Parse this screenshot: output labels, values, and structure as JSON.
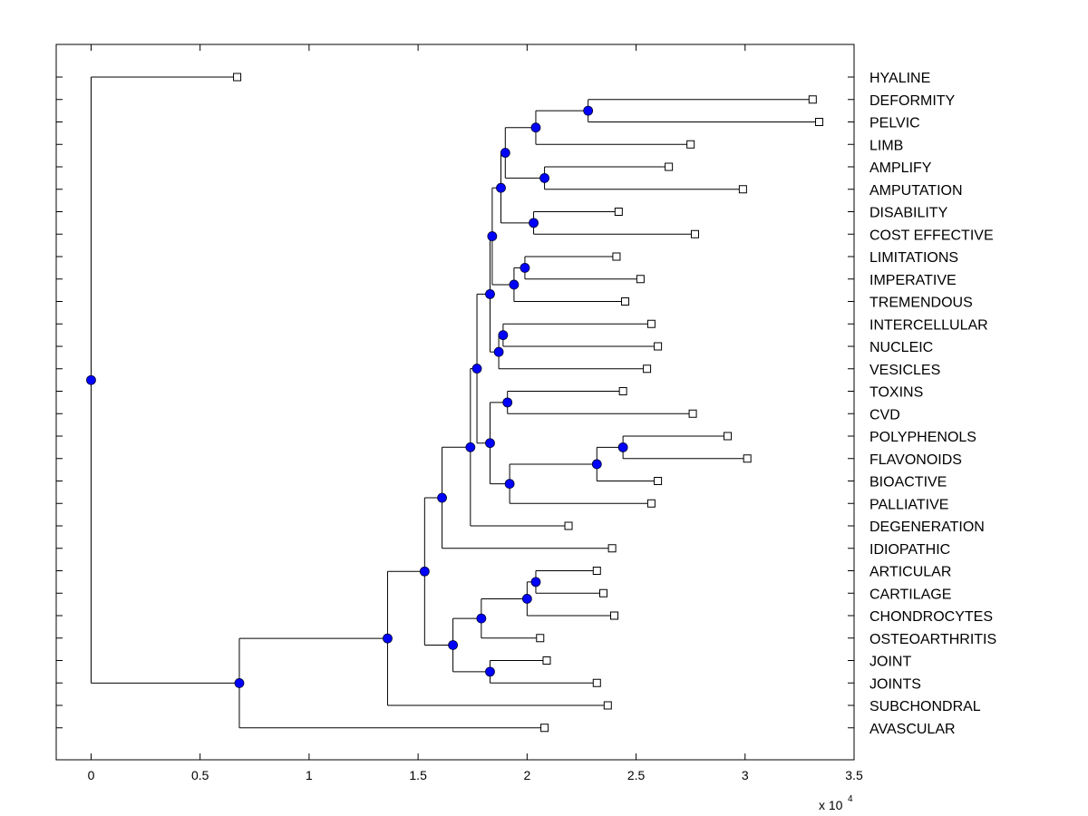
{
  "chart_data": {
    "type": "dendrogram",
    "title": "",
    "xlabel": "",
    "ylabel": "",
    "x_scale_label": "x 10",
    "x_scale_exponent": "4",
    "xlim": [
      -0.16,
      3.5
    ],
    "xticks": [
      0,
      0.5,
      1,
      1.5,
      2,
      2.5,
      3,
      3.5
    ],
    "xtick_labels": [
      "0",
      "0.5",
      "1",
      "1.5",
      "2",
      "2.5",
      "3",
      "3.5"
    ],
    "leaf_labels": [
      "HYALINE",
      "DEFORMITY",
      "PELVIC",
      "LIMB",
      "AMPLIFY",
      "AMPUTATION",
      "DISABILITY",
      "COST EFFECTIVE",
      "LIMITATIONS",
      "IMPERATIVE",
      "TREMENDOUS",
      "INTERCELLULAR",
      "NUCLEIC",
      "VESICLES",
      "TOXINS",
      "CVD",
      "POLYPHENOLS",
      "FLAVONOIDS",
      "BIOACTIVE",
      "PALLIATIVE",
      "DEGENERATION",
      "IDIOPATHIC",
      "ARTICULAR",
      "CARTILAGE",
      "CHONDROCYTES",
      "OSTEOARTHRITIS",
      "JOINT",
      "JOINTS",
      "SUBCHONDRAL",
      "AVASCULAR"
    ],
    "leaf_values": [
      0.67,
      3.31,
      3.34,
      2.75,
      2.65,
      2.99,
      2.42,
      2.77,
      2.41,
      2.52,
      2.45,
      2.57,
      2.6,
      2.55,
      2.44,
      2.76,
      2.92,
      3.01,
      2.6,
      2.57,
      2.19,
      2.39,
      2.32,
      2.35,
      2.4,
      2.06,
      2.09,
      2.32,
      2.37,
      2.08
    ],
    "nodes": [
      {
        "id": "n1",
        "x": 2.28,
        "children": [
          "L1",
          "L2"
        ]
      },
      {
        "id": "n2",
        "x": 2.04,
        "children": [
          "n1",
          "L3"
        ]
      },
      {
        "id": "n3",
        "x": 2.08,
        "children": [
          "L4",
          "L5"
        ]
      },
      {
        "id": "n4",
        "x": 1.9,
        "children": [
          "n2",
          "n3"
        ]
      },
      {
        "id": "n5",
        "x": 2.03,
        "children": [
          "L6",
          "L7"
        ]
      },
      {
        "id": "n6",
        "x": 1.88,
        "children": [
          "n4",
          "n5"
        ]
      },
      {
        "id": "n7",
        "x": 1.99,
        "children": [
          "L8",
          "L9"
        ]
      },
      {
        "id": "n8",
        "x": 1.94,
        "children": [
          "n7",
          "L10"
        ]
      },
      {
        "id": "n9",
        "x": 1.84,
        "children": [
          "n6",
          "n8"
        ]
      },
      {
        "id": "n10",
        "x": 1.89,
        "children": [
          "L11",
          "L12"
        ]
      },
      {
        "id": "n11",
        "x": 1.87,
        "children": [
          "n10",
          "L13"
        ]
      },
      {
        "id": "n12",
        "x": 1.83,
        "children": [
          "n9",
          "n11"
        ]
      },
      {
        "id": "n13",
        "x": 1.91,
        "children": [
          "L14",
          "L15"
        ]
      },
      {
        "id": "n14",
        "x": 2.44,
        "children": [
          "L16",
          "L17"
        ]
      },
      {
        "id": "n15",
        "x": 2.32,
        "children": [
          "n14",
          "L18"
        ]
      },
      {
        "id": "n16",
        "x": 1.92,
        "children": [
          "n15",
          "L19"
        ]
      },
      {
        "id": "n17",
        "x": 1.83,
        "children": [
          "n13",
          "n16"
        ]
      },
      {
        "id": "n18",
        "x": 1.77,
        "children": [
          "n12",
          "n17"
        ]
      },
      {
        "id": "n19",
        "x": 1.74,
        "children": [
          "n18",
          "L20"
        ]
      },
      {
        "id": "n20",
        "x": 1.61,
        "children": [
          "n19",
          "L21"
        ]
      },
      {
        "id": "n21",
        "x": 2.04,
        "children": [
          "L22",
          "L23"
        ]
      },
      {
        "id": "n22",
        "x": 2.0,
        "children": [
          "n21",
          "L24"
        ]
      },
      {
        "id": "n23",
        "x": 1.79,
        "children": [
          "n22",
          "L25"
        ]
      },
      {
        "id": "n24",
        "x": 1.83,
        "children": [
          "L26",
          "L27"
        ]
      },
      {
        "id": "n25",
        "x": 1.66,
        "children": [
          "n23",
          "n24"
        ]
      },
      {
        "id": "n26",
        "x": 1.53,
        "children": [
          "n20",
          "n25"
        ]
      },
      {
        "id": "n27",
        "x": 1.36,
        "children": [
          "n26",
          "L28"
        ]
      },
      {
        "id": "n28",
        "x": 0.68,
        "children": [
          "n27",
          "L29"
        ]
      },
      {
        "id": "n29",
        "x": 0.0,
        "children": [
          "L0",
          "n28"
        ]
      }
    ],
    "colors": {
      "node_fill": "#0000ff",
      "leaf_fill": "#ffffff",
      "line": "#000000",
      "background": "#ffffff"
    }
  }
}
